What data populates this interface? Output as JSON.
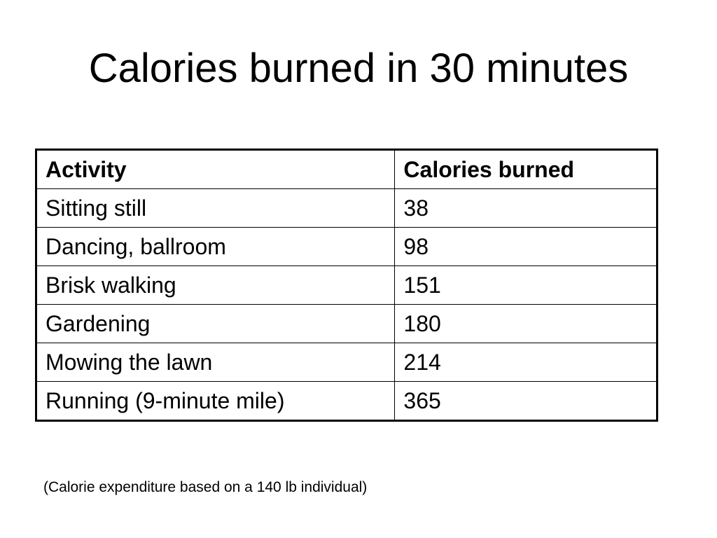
{
  "title": "Calories burned in 30 minutes",
  "table": {
    "headers": [
      "Activity",
      "Calories burned"
    ],
    "rows": [
      [
        "Sitting still",
        "38"
      ],
      [
        "Dancing, ballroom",
        "98"
      ],
      [
        "Brisk walking",
        "151"
      ],
      [
        "Gardening",
        "180"
      ],
      [
        "Mowing the lawn",
        "214"
      ],
      [
        "Running (9-minute mile)",
        "365"
      ]
    ]
  },
  "footnote": "(Calorie expenditure based on a 140 lb individual)"
}
